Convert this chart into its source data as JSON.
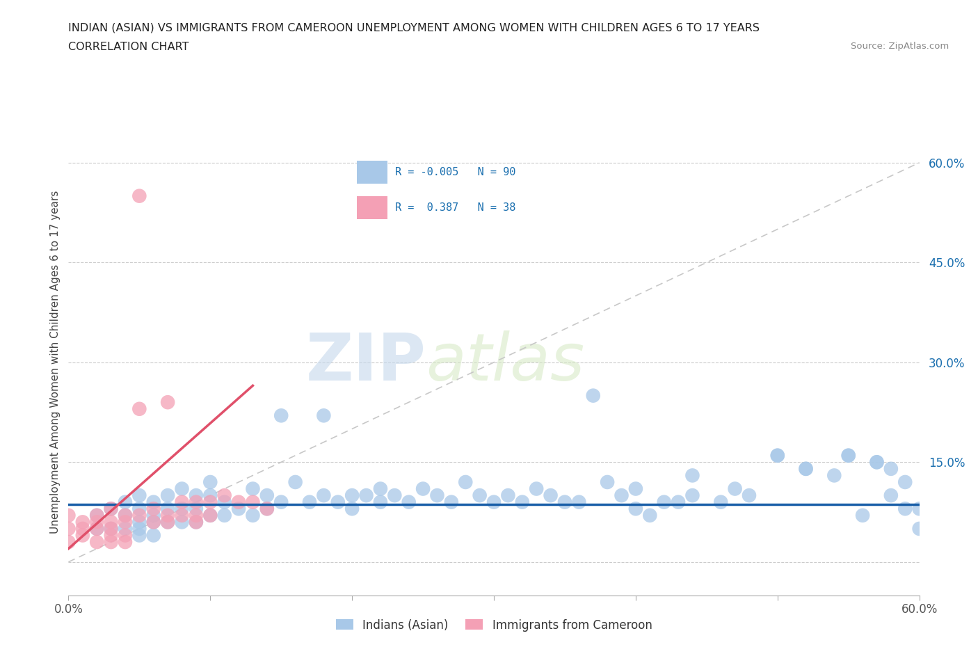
{
  "title_line1": "INDIAN (ASIAN) VS IMMIGRANTS FROM CAMEROON UNEMPLOYMENT AMONG WOMEN WITH CHILDREN AGES 6 TO 17 YEARS",
  "title_line2": "CORRELATION CHART",
  "source_text": "Source: ZipAtlas.com",
  "ylabel": "Unemployment Among Women with Children Ages 6 to 17 years",
  "xlim": [
    0.0,
    0.6
  ],
  "ylim": [
    -0.05,
    0.65
  ],
  "yticks": [
    0.0,
    0.15,
    0.3,
    0.45,
    0.6
  ],
  "yticklabels": [
    "",
    "15.0%",
    "30.0%",
    "45.0%",
    "60.0%"
  ],
  "xticks": [
    0.0,
    0.1,
    0.2,
    0.3,
    0.4,
    0.5,
    0.6
  ],
  "xticklabels": [
    "0.0%",
    "",
    "",
    "",
    "",
    "",
    "60.0%"
  ],
  "color_blue": "#a8c8e8",
  "color_pink": "#f4a0b5",
  "color_blue_line": "#1a5fa8",
  "color_pink_line": "#e0506a",
  "watermark_zip": "ZIP",
  "watermark_atlas": "atlas",
  "blue_x": [
    0.02,
    0.02,
    0.03,
    0.03,
    0.04,
    0.04,
    0.04,
    0.05,
    0.05,
    0.05,
    0.05,
    0.05,
    0.06,
    0.06,
    0.06,
    0.06,
    0.07,
    0.07,
    0.07,
    0.08,
    0.08,
    0.08,
    0.09,
    0.09,
    0.09,
    0.1,
    0.1,
    0.1,
    0.11,
    0.11,
    0.12,
    0.13,
    0.13,
    0.14,
    0.14,
    0.15,
    0.15,
    0.16,
    0.17,
    0.18,
    0.18,
    0.19,
    0.2,
    0.2,
    0.21,
    0.22,
    0.22,
    0.23,
    0.24,
    0.25,
    0.26,
    0.27,
    0.28,
    0.29,
    0.3,
    0.31,
    0.32,
    0.33,
    0.34,
    0.35,
    0.36,
    0.37,
    0.38,
    0.39,
    0.4,
    0.41,
    0.43,
    0.44,
    0.46,
    0.48,
    0.5,
    0.52,
    0.54,
    0.55,
    0.57,
    0.58,
    0.4,
    0.42,
    0.44,
    0.47,
    0.5,
    0.52,
    0.55,
    0.57,
    0.59,
    0.59,
    0.6,
    0.6,
    0.58,
    0.56
  ],
  "blue_y": [
    0.07,
    0.05,
    0.08,
    0.05,
    0.09,
    0.07,
    0.05,
    0.1,
    0.08,
    0.06,
    0.05,
    0.04,
    0.09,
    0.07,
    0.06,
    0.04,
    0.1,
    0.08,
    0.06,
    0.11,
    0.08,
    0.06,
    0.1,
    0.08,
    0.06,
    0.12,
    0.1,
    0.07,
    0.09,
    0.07,
    0.08,
    0.11,
    0.07,
    0.1,
    0.08,
    0.22,
    0.09,
    0.12,
    0.09,
    0.22,
    0.1,
    0.09,
    0.1,
    0.08,
    0.1,
    0.11,
    0.09,
    0.1,
    0.09,
    0.11,
    0.1,
    0.09,
    0.12,
    0.1,
    0.09,
    0.1,
    0.09,
    0.11,
    0.1,
    0.09,
    0.09,
    0.25,
    0.12,
    0.1,
    0.11,
    0.07,
    0.09,
    0.1,
    0.09,
    0.1,
    0.16,
    0.14,
    0.13,
    0.16,
    0.15,
    0.14,
    0.08,
    0.09,
    0.13,
    0.11,
    0.16,
    0.14,
    0.16,
    0.15,
    0.08,
    0.12,
    0.08,
    0.05,
    0.1,
    0.07
  ],
  "pink_x": [
    0.0,
    0.0,
    0.0,
    0.01,
    0.01,
    0.01,
    0.02,
    0.02,
    0.02,
    0.02,
    0.03,
    0.03,
    0.03,
    0.03,
    0.03,
    0.04,
    0.04,
    0.04,
    0.04,
    0.05,
    0.05,
    0.05,
    0.06,
    0.06,
    0.07,
    0.07,
    0.07,
    0.08,
    0.08,
    0.09,
    0.09,
    0.09,
    0.1,
    0.1,
    0.11,
    0.12,
    0.13,
    0.14
  ],
  "pink_y": [
    0.07,
    0.05,
    0.03,
    0.06,
    0.05,
    0.04,
    0.07,
    0.06,
    0.05,
    0.03,
    0.08,
    0.06,
    0.05,
    0.04,
    0.03,
    0.07,
    0.06,
    0.04,
    0.03,
    0.55,
    0.23,
    0.07,
    0.08,
    0.06,
    0.07,
    0.24,
    0.06,
    0.09,
    0.07,
    0.09,
    0.07,
    0.06,
    0.09,
    0.07,
    0.1,
    0.09,
    0.09,
    0.08
  ],
  "blue_trend_y0": 0.087,
  "blue_trend_y1": 0.087,
  "pink_trend_x0": 0.0,
  "pink_trend_y0": 0.02,
  "pink_trend_x1": 0.13,
  "pink_trend_y1": 0.265
}
